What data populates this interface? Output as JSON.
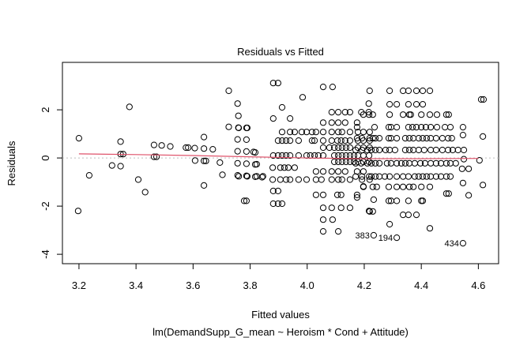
{
  "chart_data": {
    "type": "scatter",
    "title": "Residuals vs Fitted",
    "xlabel": "Fitted values",
    "subtitle": "lm(DemandSupp_G_mean ~ Heroism * Cond + Attitude)",
    "ylabel": "Residuals",
    "xlim": [
      3.142,
      4.671
    ],
    "ylim": [
      -4.39,
      3.97
    ],
    "xticks": [
      3.2,
      3.4,
      3.6,
      3.8,
      4.0,
      4.2,
      4.4,
      4.6
    ],
    "xtick_labels": [
      "3.2",
      "3.4",
      "3.6",
      "3.8",
      "4.0",
      "4.2",
      "4.4",
      "4.6"
    ],
    "yticks": [
      -4,
      -2,
      0,
      2
    ],
    "ytick_labels": [
      "-4",
      "-2",
      "0",
      "2"
    ],
    "colors": {
      "points": "#000000",
      "smooth": "#df536b",
      "zero_line": "#bebebe"
    },
    "smooth_line": [
      [
        3.2,
        0.17
      ],
      [
        3.4,
        0.14
      ],
      [
        3.6,
        0.1
      ],
      [
        3.8,
        0.05
      ],
      [
        4.0,
        0.0
      ],
      [
        4.2,
        -0.03
      ],
      [
        4.4,
        -0.03
      ],
      [
        4.6,
        -0.02
      ]
    ],
    "labeled_points": [
      {
        "label": "383",
        "x": 4.233,
        "y": -3.21
      },
      {
        "label": "194",
        "x": 4.314,
        "y": -3.31
      },
      {
        "label": "434",
        "x": 4.546,
        "y": -3.54
      }
    ],
    "points": [
      [
        3.2,
        0.82
      ],
      [
        3.197,
        -2.2
      ],
      [
        3.236,
        -0.72
      ],
      [
        3.316,
        -0.31
      ],
      [
        3.346,
        0.68
      ],
      [
        3.346,
        0.16
      ],
      [
        3.355,
        0.16
      ],
      [
        3.346,
        -0.34
      ],
      [
        3.377,
        2.12
      ],
      [
        3.408,
        -0.9
      ],
      [
        3.432,
        -1.42
      ],
      [
        3.463,
        0.54
      ],
      [
        3.463,
        0.05
      ],
      [
        3.472,
        0.05
      ],
      [
        3.49,
        0.52
      ],
      [
        3.52,
        0.48
      ],
      [
        3.575,
        0.43
      ],
      [
        3.583,
        0.43
      ],
      [
        3.606,
        0.41
      ],
      [
        3.638,
        0.87
      ],
      [
        3.638,
        0.39
      ],
      [
        3.638,
        -0.12
      ],
      [
        3.645,
        -0.12
      ],
      [
        3.607,
        -0.11
      ],
      [
        3.638,
        -1.14
      ],
      [
        3.669,
        0.36
      ],
      [
        3.694,
        -0.19
      ],
      [
        3.703,
        -0.7
      ],
      [
        3.725,
        2.79
      ],
      [
        3.725,
        1.29
      ],
      [
        3.756,
        2.26
      ],
      [
        3.759,
        1.75
      ],
      [
        3.759,
        1.26
      ],
      [
        3.756,
        0.77
      ],
      [
        3.756,
        0.28
      ],
      [
        3.756,
        -0.22
      ],
      [
        3.756,
        -0.72
      ],
      [
        3.779,
        -1.78
      ],
      [
        3.787,
        -1.78
      ],
      [
        3.787,
        1.25
      ],
      [
        3.787,
        0.76
      ],
      [
        3.787,
        0.27
      ],
      [
        3.787,
        -0.24
      ],
      [
        3.787,
        -0.74
      ],
      [
        3.812,
        0.25
      ],
      [
        3.818,
        -0.27
      ],
      [
        3.818,
        -0.78
      ],
      [
        3.842,
        -0.8
      ],
      [
        3.881,
        3.11
      ],
      [
        3.898,
        3.11
      ],
      [
        4.056,
        2.95
      ],
      [
        4.089,
        2.95
      ],
      [
        4.219,
        2.79
      ],
      [
        3.984,
        2.52
      ],
      [
        4.216,
        2.26
      ],
      [
        3.912,
        2.1
      ],
      [
        4.086,
        1.9
      ],
      [
        4.109,
        1.9
      ],
      [
        4.133,
        1.9
      ],
      [
        4.15,
        1.9
      ],
      [
        4.19,
        1.9
      ],
      [
        4.216,
        1.9
      ],
      [
        3.881,
        1.64
      ],
      [
        3.94,
        1.64
      ],
      [
        4.056,
        1.47
      ],
      [
        4.086,
        1.47
      ],
      [
        4.109,
        1.47
      ],
      [
        4.133,
        1.47
      ],
      [
        4.175,
        1.47
      ],
      [
        3.76,
        1.25
      ],
      [
        3.79,
        1.25
      ],
      [
        3.912,
        1.08
      ],
      [
        3.94,
        1.08
      ],
      [
        3.956,
        1.08
      ],
      [
        3.981,
        1.08
      ],
      [
        3.998,
        1.08
      ],
      [
        4.017,
        1.08
      ],
      [
        4.031,
        1.08
      ],
      [
        4.056,
        1.08
      ],
      [
        4.086,
        1.08
      ],
      [
        4.109,
        1.08
      ],
      [
        4.122,
        1.08
      ],
      [
        4.15,
        1.08
      ],
      [
        4.178,
        1.08
      ],
      [
        4.197,
        1.08
      ],
      [
        4.219,
        1.08
      ],
      [
        3.898,
        0.72
      ],
      [
        3.912,
        0.72
      ],
      [
        3.926,
        0.72
      ],
      [
        3.94,
        0.72
      ],
      [
        3.97,
        0.72
      ],
      [
        4.017,
        0.72
      ],
      [
        4.026,
        0.72
      ],
      [
        4.056,
        0.72
      ],
      [
        4.086,
        0.72
      ],
      [
        4.106,
        0.72
      ],
      [
        4.119,
        0.72
      ],
      [
        4.133,
        0.72
      ],
      [
        4.15,
        0.72
      ],
      [
        4.178,
        0.72
      ],
      [
        4.197,
        0.72
      ],
      [
        4.219,
        0.72
      ],
      [
        4.056,
        0.43
      ],
      [
        4.078,
        0.43
      ],
      [
        4.095,
        0.43
      ],
      [
        4.109,
        0.43
      ],
      [
        4.122,
        0.43
      ],
      [
        4.136,
        0.43
      ],
      [
        4.15,
        0.43
      ],
      [
        4.178,
        0.43
      ],
      [
        4.197,
        0.43
      ],
      [
        4.219,
        0.43
      ],
      [
        3.818,
        0.23
      ],
      [
        3.881,
        0.1
      ],
      [
        3.898,
        0.1
      ],
      [
        3.912,
        0.1
      ],
      [
        3.926,
        0.1
      ],
      [
        3.94,
        0.1
      ],
      [
        3.97,
        0.1
      ],
      [
        3.998,
        0.1
      ],
      [
        4.011,
        0.1
      ],
      [
        4.026,
        0.1
      ],
      [
        4.039,
        0.1
      ],
      [
        4.056,
        0.1
      ],
      [
        4.095,
        0.1
      ],
      [
        4.109,
        0.1
      ],
      [
        4.122,
        0.1
      ],
      [
        4.136,
        0.1
      ],
      [
        4.15,
        0.1
      ],
      [
        4.164,
        0.1
      ],
      [
        4.178,
        0.1
      ],
      [
        4.197,
        0.1
      ],
      [
        4.217,
        0.1
      ],
      [
        4.095,
        -0.16
      ],
      [
        4.109,
        -0.16
      ],
      [
        4.122,
        -0.16
      ],
      [
        4.136,
        -0.16
      ],
      [
        4.15,
        -0.16
      ],
      [
        4.164,
        -0.16
      ],
      [
        4.178,
        -0.16
      ],
      [
        4.197,
        -0.16
      ],
      [
        4.217,
        -0.16
      ],
      [
        3.823,
        -0.26
      ],
      [
        3.879,
        -0.4
      ],
      [
        3.906,
        -0.4
      ],
      [
        3.92,
        -0.4
      ],
      [
        3.934,
        -0.4
      ],
      [
        3.956,
        -0.4
      ],
      [
        4.031,
        -0.56
      ],
      [
        4.056,
        -0.56
      ],
      [
        4.086,
        -0.56
      ],
      [
        4.109,
        -0.56
      ],
      [
        4.133,
        -0.56
      ],
      [
        4.175,
        -0.56
      ],
      [
        4.197,
        -0.56
      ],
      [
        3.76,
        -0.76
      ],
      [
        3.79,
        -0.76
      ],
      [
        3.823,
        -0.76
      ],
      [
        3.845,
        -0.76
      ],
      [
        3.879,
        -0.9
      ],
      [
        3.906,
        -0.9
      ],
      [
        3.926,
        -0.9
      ],
      [
        3.94,
        -0.9
      ],
      [
        3.97,
        -0.9
      ],
      [
        3.998,
        -0.9
      ],
      [
        4.031,
        -0.9
      ],
      [
        4.05,
        -0.9
      ],
      [
        4.086,
        -0.9
      ],
      [
        4.109,
        -0.9
      ],
      [
        4.122,
        -0.9
      ],
      [
        4.15,
        -0.9
      ],
      [
        4.192,
        -0.9
      ],
      [
        4.219,
        -0.9
      ],
      [
        4.197,
        -1.18
      ],
      [
        3.881,
        -1.37
      ],
      [
        3.898,
        -1.37
      ],
      [
        4.031,
        -1.53
      ],
      [
        4.056,
        -1.53
      ],
      [
        4.106,
        -1.53
      ],
      [
        4.119,
        -1.53
      ],
      [
        4.175,
        -1.53
      ],
      [
        3.881,
        -1.9
      ],
      [
        3.898,
        -1.9
      ],
      [
        3.912,
        -1.9
      ],
      [
        4.056,
        -2.07
      ],
      [
        4.086,
        -2.07
      ],
      [
        4.119,
        -2.07
      ],
      [
        4.15,
        -2.07
      ],
      [
        4.217,
        -2.2
      ],
      [
        4.056,
        -2.56
      ],
      [
        4.089,
        -2.56
      ],
      [
        4.056,
        -3.05
      ],
      [
        4.109,
        -3.05
      ],
      [
        4.233,
        -3.21
      ],
      [
        4.314,
        -3.31
      ],
      [
        4.546,
        -3.54
      ],
      [
        4.289,
        2.79
      ],
      [
        4.336,
        2.79
      ],
      [
        4.355,
        2.79
      ],
      [
        4.383,
        2.79
      ],
      [
        4.405,
        2.79
      ],
      [
        4.43,
        2.79
      ],
      [
        4.61,
        2.43
      ],
      [
        4.618,
        2.43
      ],
      [
        4.289,
        2.23
      ],
      [
        4.314,
        2.23
      ],
      [
        4.355,
        2.23
      ],
      [
        4.383,
        2.23
      ],
      [
        4.405,
        2.23
      ],
      [
        4.197,
        1.8
      ],
      [
        4.217,
        1.8
      ],
      [
        4.23,
        1.8
      ],
      [
        4.289,
        1.8
      ],
      [
        4.336,
        1.8
      ],
      [
        4.358,
        1.8
      ],
      [
        4.363,
        1.8
      ],
      [
        4.4,
        1.8
      ],
      [
        4.43,
        1.8
      ],
      [
        4.455,
        1.8
      ],
      [
        4.488,
        1.8
      ],
      [
        4.496,
        1.8
      ],
      [
        4.175,
        1.28
      ],
      [
        4.236,
        1.28
      ],
      [
        4.286,
        1.28
      ],
      [
        4.294,
        1.28
      ],
      [
        4.314,
        1.28
      ],
      [
        4.355,
        1.28
      ],
      [
        4.369,
        1.28
      ],
      [
        4.383,
        1.28
      ],
      [
        4.4,
        1.28
      ],
      [
        4.416,
        1.28
      ],
      [
        4.433,
        1.28
      ],
      [
        4.455,
        1.28
      ],
      [
        4.483,
        1.28
      ],
      [
        4.502,
        1.28
      ],
      [
        4.546,
        1.28
      ],
      [
        4.175,
        0.82
      ],
      [
        4.192,
        0.82
      ],
      [
        4.219,
        0.82
      ],
      [
        4.23,
        0.82
      ],
      [
        4.239,
        0.82
      ],
      [
        4.253,
        0.82
      ],
      [
        4.286,
        0.82
      ],
      [
        4.294,
        0.82
      ],
      [
        4.314,
        0.82
      ],
      [
        4.344,
        0.82
      ],
      [
        4.358,
        0.82
      ],
      [
        4.372,
        0.82
      ],
      [
        4.391,
        0.82
      ],
      [
        4.405,
        0.82
      ],
      [
        4.419,
        0.82
      ],
      [
        4.433,
        0.82
      ],
      [
        4.452,
        0.82
      ],
      [
        4.474,
        0.82
      ],
      [
        4.494,
        0.82
      ],
      [
        4.507,
        0.82
      ],
      [
        4.546,
        0.95
      ],
      [
        4.616,
        0.89
      ],
      [
        4.17,
        0.33
      ],
      [
        4.192,
        0.33
      ],
      [
        4.211,
        0.33
      ],
      [
        4.225,
        0.33
      ],
      [
        4.239,
        0.33
      ],
      [
        4.253,
        0.33
      ],
      [
        4.275,
        0.33
      ],
      [
        4.289,
        0.33
      ],
      [
        4.308,
        0.33
      ],
      [
        4.344,
        0.33
      ],
      [
        4.358,
        0.33
      ],
      [
        4.372,
        0.33
      ],
      [
        4.391,
        0.33
      ],
      [
        4.41,
        0.33
      ],
      [
        4.433,
        0.33
      ],
      [
        4.452,
        0.33
      ],
      [
        4.474,
        0.33
      ],
      [
        4.494,
        0.33
      ],
      [
        4.51,
        0.33
      ],
      [
        4.529,
        0.33
      ],
      [
        4.549,
        0.33
      ],
      [
        4.549,
        -0.05
      ],
      [
        4.604,
        -0.1
      ],
      [
        4.17,
        -0.22
      ],
      [
        4.189,
        -0.22
      ],
      [
        4.211,
        -0.22
      ],
      [
        4.225,
        -0.22
      ],
      [
        4.239,
        -0.22
      ],
      [
        4.253,
        -0.22
      ],
      [
        4.28,
        -0.22
      ],
      [
        4.294,
        -0.22
      ],
      [
        4.314,
        -0.22
      ],
      [
        4.33,
        -0.22
      ],
      [
        4.344,
        -0.22
      ],
      [
        4.358,
        -0.22
      ],
      [
        4.377,
        -0.22
      ],
      [
        4.397,
        -0.22
      ],
      [
        4.413,
        -0.22
      ],
      [
        4.433,
        -0.22
      ],
      [
        4.452,
        -0.22
      ],
      [
        4.469,
        -0.22
      ],
      [
        4.488,
        -0.22
      ],
      [
        4.502,
        -0.22
      ],
      [
        4.521,
        -0.22
      ],
      [
        4.543,
        -0.45
      ],
      [
        4.566,
        -0.45
      ],
      [
        4.17,
        -0.77
      ],
      [
        4.192,
        -0.77
      ],
      [
        4.217,
        -0.77
      ],
      [
        4.225,
        -0.77
      ],
      [
        4.239,
        -0.77
      ],
      [
        4.253,
        -0.77
      ],
      [
        4.272,
        -0.77
      ],
      [
        4.289,
        -0.77
      ],
      [
        4.314,
        -0.77
      ],
      [
        4.336,
        -0.77
      ],
      [
        4.355,
        -0.77
      ],
      [
        4.377,
        -0.77
      ],
      [
        4.391,
        -0.77
      ],
      [
        4.405,
        -0.77
      ],
      [
        4.419,
        -0.77
      ],
      [
        4.433,
        -0.77
      ],
      [
        4.452,
        -0.77
      ],
      [
        4.469,
        -0.77
      ],
      [
        4.488,
        -0.77
      ],
      [
        4.502,
        -0.77
      ],
      [
        4.546,
        -1.04
      ],
      [
        4.616,
        -1.12
      ],
      [
        4.197,
        -1.2
      ],
      [
        4.23,
        -1.2
      ],
      [
        4.244,
        -1.2
      ],
      [
        4.286,
        -1.2
      ],
      [
        4.314,
        -1.2
      ],
      [
        4.336,
        -1.2
      ],
      [
        4.358,
        -1.2
      ],
      [
        4.372,
        -1.2
      ],
      [
        4.4,
        -1.2
      ],
      [
        4.43,
        -1.2
      ],
      [
        4.488,
        -1.48
      ],
      [
        4.496,
        -1.48
      ],
      [
        4.566,
        -1.55
      ],
      [
        4.175,
        -1.64
      ],
      [
        4.233,
        -1.73
      ],
      [
        4.286,
        -1.78
      ],
      [
        4.294,
        -1.78
      ],
      [
        4.314,
        -1.78
      ],
      [
        4.355,
        -1.78
      ],
      [
        4.4,
        -1.78
      ],
      [
        4.405,
        -1.78
      ],
      [
        4.219,
        -2.22
      ],
      [
        4.23,
        -2.22
      ],
      [
        4.336,
        -2.36
      ],
      [
        4.355,
        -2.36
      ],
      [
        4.383,
        -2.36
      ],
      [
        4.289,
        -2.75
      ],
      [
        4.43,
        -2.92
      ]
    ]
  }
}
